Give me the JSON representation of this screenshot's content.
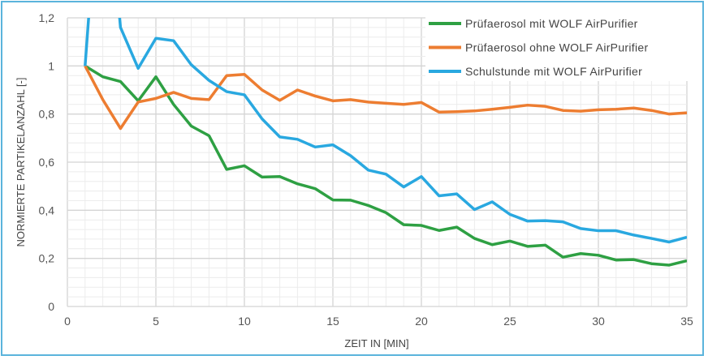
{
  "chart_data": {
    "type": "line",
    "title": "",
    "xlabel": "ZEIT IN [MIN]",
    "ylabel": "NORMIERTE PARTIKELANZAHL [-]",
    "xlim": [
      0,
      35
    ],
    "ylim": [
      0,
      1.2
    ],
    "xticks": [
      0,
      5,
      10,
      15,
      20,
      25,
      30,
      35
    ],
    "xtick_labels": [
      "0",
      "5",
      "10",
      "15",
      "20",
      "25",
      "30",
      "35"
    ],
    "yticks": [
      0,
      0.2,
      0.4,
      0.6,
      0.8,
      1.0,
      1.2
    ],
    "ytick_labels": [
      "0",
      "0,2",
      "0,4",
      "0,6",
      "0,8",
      "1",
      "1,2"
    ],
    "grid": true,
    "legend_position": "top-right",
    "x": [
      1,
      2,
      3,
      4,
      5,
      6,
      7,
      8,
      9,
      10,
      11,
      12,
      13,
      14,
      15,
      16,
      17,
      18,
      19,
      20,
      21,
      22,
      23,
      24,
      25,
      26,
      27,
      28,
      29,
      30,
      31,
      32,
      33,
      34,
      35
    ],
    "series": [
      {
        "name": "Prüfaerosol mit WOLF AirPurifier",
        "color": "#2ea043",
        "values": [
          1.0,
          0.955,
          0.935,
          0.855,
          0.955,
          0.84,
          0.75,
          0.71,
          0.57,
          0.585,
          0.538,
          0.54,
          0.51,
          0.49,
          0.443,
          0.442,
          0.42,
          0.39,
          0.34,
          0.337,
          0.316,
          0.33,
          0.283,
          0.257,
          0.272,
          0.25,
          0.255,
          0.205,
          0.22,
          0.213,
          0.193,
          0.195,
          0.178,
          0.172,
          0.19
        ]
      },
      {
        "name": "Prüfaerosol ohne WOLF AirPurifier",
        "color": "#ed7d31",
        "values": [
          1.0,
          0.86,
          0.74,
          0.85,
          0.865,
          0.89,
          0.865,
          0.86,
          0.96,
          0.965,
          0.9,
          0.857,
          0.9,
          0.875,
          0.855,
          0.86,
          0.85,
          0.845,
          0.84,
          0.848,
          0.808,
          0.81,
          0.813,
          0.82,
          0.828,
          0.837,
          0.832,
          0.815,
          0.812,
          0.818,
          0.82,
          0.825,
          0.815,
          0.8,
          0.805
        ]
      },
      {
        "name": "Schulstunde mit WOLF AirPurifier",
        "color": "#29a8e0",
        "values": [
          1.0,
          2.0,
          1.16,
          0.99,
          1.115,
          1.105,
          1.005,
          0.94,
          0.893,
          0.88,
          0.78,
          0.705,
          0.695,
          0.663,
          0.672,
          0.627,
          0.567,
          0.55,
          0.497,
          0.54,
          0.46,
          0.468,
          0.403,
          0.435,
          0.383,
          0.355,
          0.357,
          0.352,
          0.324,
          0.315,
          0.315,
          0.297,
          0.283,
          0.268,
          0.288
        ]
      }
    ]
  }
}
